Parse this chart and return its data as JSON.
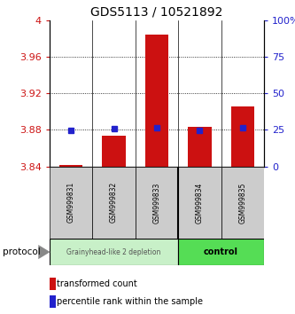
{
  "title": "GDS5113 / 10521892",
  "samples": [
    "GSM999831",
    "GSM999832",
    "GSM999833",
    "GSM999834",
    "GSM999835"
  ],
  "red_bar_top": [
    3.8415,
    3.874,
    3.984,
    3.883,
    3.906
  ],
  "red_bar_bottom": 3.84,
  "blue_sq_y": [
    3.879,
    3.881,
    3.882,
    3.879,
    3.882
  ],
  "ylim": [
    3.84,
    4.0
  ],
  "yticks_left": [
    3.84,
    3.88,
    3.92,
    3.96,
    4.0
  ],
  "yticks_left_labels": [
    "3.84",
    "3.88",
    "3.92",
    "3.96",
    "4"
  ],
  "yticks_right": [
    0,
    25,
    50,
    75,
    100
  ],
  "yticks_right_labels": [
    "0",
    "25",
    "50",
    "75",
    "100%"
  ],
  "group1_indices": [
    0,
    1,
    2
  ],
  "group2_indices": [
    3,
    4
  ],
  "group1_label": "Grainyhead-like 2 depletion",
  "group2_label": "control",
  "group1_bg": "#c8f0c8",
  "group2_bg": "#55dd55",
  "protocol_label": "protocol",
  "legend_red": "transformed count",
  "legend_blue": "percentile rank within the sample",
  "bar_color": "#cc1111",
  "blue_color": "#2222cc",
  "left_tick_color": "#cc1111",
  "right_tick_color": "#2222cc",
  "bar_width": 0.55,
  "figsize": [
    3.33,
    3.54
  ],
  "dpi": 100
}
